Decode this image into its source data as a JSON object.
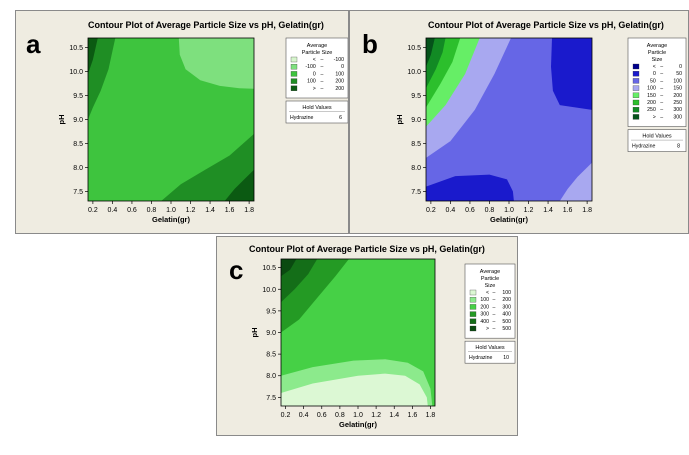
{
  "chart_data": [
    {
      "panel_letter": "a",
      "type": "contour",
      "title": "Contour Plot of Average Particle Size vs pH, Gelatin(gr)",
      "xlabel": "Gelatin(gr)",
      "ylabel": "pH",
      "xlim": [
        0.15,
        1.85
      ],
      "ylim": [
        7.3,
        10.7
      ],
      "xticks": [
        "0.2",
        "0.4",
        "0.6",
        "0.8",
        "1.0",
        "1.2",
        "1.4",
        "1.6",
        "1.8"
      ],
      "yticks": [
        "7.5",
        "8.0",
        "8.5",
        "9.0",
        "9.5",
        "10.0",
        "10.5"
      ],
      "grid": false,
      "legend_position": "right",
      "legend_title": [
        "Average",
        "Particle Size"
      ],
      "levels": [
        {
          "low": "<",
          "high": "-100",
          "color": "#d6f5cc"
        },
        {
          "low": "-100",
          "high": "0",
          "color": "#7ee07e"
        },
        {
          "low": "0",
          "high": "100",
          "color": "#3ec43e"
        },
        {
          "low": "100",
          "high": "200",
          "color": "#1f8e24"
        },
        {
          "low": ">",
          "high": "200",
          "color": "#0b5a12"
        }
      ],
      "hold_values": {
        "title": "Hold Values",
        "name": "Hydrazine",
        "value": "6"
      },
      "regions": [
        {
          "level": 2,
          "pts": [
            [
              0.15,
              7.3
            ],
            [
              1.85,
              7.3
            ],
            [
              1.85,
              10.7
            ],
            [
              0.15,
              10.7
            ]
          ]
        },
        {
          "level": 3,
          "pts": [
            [
              0.15,
              10.7
            ],
            [
              0.15,
              9.0
            ],
            [
              0.2,
              9.25
            ],
            [
              0.28,
              9.6
            ],
            [
              0.36,
              10.05
            ],
            [
              0.43,
              10.7
            ]
          ]
        },
        {
          "level": 4,
          "pts": [
            [
              0.15,
              10.7
            ],
            [
              0.15,
              9.95
            ],
            [
              0.2,
              10.25
            ],
            [
              0.25,
              10.7
            ]
          ]
        },
        {
          "level": 1,
          "pts": [
            [
              1.08,
              10.7
            ],
            [
              1.09,
              10.35
            ],
            [
              1.15,
              10.05
            ],
            [
              1.3,
              9.82
            ],
            [
              1.5,
              9.7
            ],
            [
              1.7,
              9.65
            ],
            [
              1.85,
              9.64
            ],
            [
              1.85,
              10.7
            ]
          ]
        },
        {
          "level": 3,
          "pts": [
            [
              0.9,
              7.3
            ],
            [
              1.1,
              7.65
            ],
            [
              1.35,
              7.95
            ],
            [
              1.6,
              8.25
            ],
            [
              1.85,
              8.7
            ],
            [
              1.85,
              7.3
            ]
          ]
        },
        {
          "level": 4,
          "pts": [
            [
              1.55,
              7.3
            ],
            [
              1.65,
              7.55
            ],
            [
              1.75,
              7.75
            ],
            [
              1.85,
              7.95
            ],
            [
              1.85,
              7.3
            ]
          ]
        }
      ]
    },
    {
      "panel_letter": "b",
      "type": "contour",
      "title": "Contour Plot of Average Particle Size vs pH, Gelatin(gr)",
      "xlabel": "Gelatin(gr)",
      "ylabel": "pH",
      "xlim": [
        0.15,
        1.85
      ],
      "ylim": [
        7.3,
        10.7
      ],
      "xticks": [
        "0.2",
        "0.4",
        "0.6",
        "0.8",
        "1.0",
        "1.2",
        "1.4",
        "1.6",
        "1.8"
      ],
      "yticks": [
        "7.5",
        "8.0",
        "8.5",
        "9.0",
        "9.5",
        "10.0",
        "10.5"
      ],
      "grid": false,
      "legend_position": "right",
      "legend_title": [
        "Average",
        "Particle",
        "Size"
      ],
      "levels": [
        {
          "low": "<",
          "high": "0",
          "color": "#00008b"
        },
        {
          "low": "0",
          "high": "50",
          "color": "#1a1acc"
        },
        {
          "low": "50",
          "high": "100",
          "color": "#6666e6"
        },
        {
          "low": "100",
          "high": "150",
          "color": "#a8a8f0"
        },
        {
          "low": "150",
          "high": "200",
          "color": "#66ee66"
        },
        {
          "low": "200",
          "high": "250",
          "color": "#2cbf2c"
        },
        {
          "low": "250",
          "high": "300",
          "color": "#128a24"
        },
        {
          "low": ">",
          "high": "300",
          "color": "#05521a"
        }
      ],
      "hold_values": {
        "title": "Hold Values",
        "name": "Hydrazine",
        "value": "8"
      },
      "regions": [
        {
          "level": 2,
          "pts": [
            [
              0.15,
              7.3
            ],
            [
              1.85,
              7.3
            ],
            [
              1.85,
              10.7
            ],
            [
              0.15,
              10.7
            ]
          ]
        },
        {
          "level": 3,
          "pts": [
            [
              0.15,
              10.7
            ],
            [
              0.15,
              8.2
            ],
            [
              0.4,
              8.55
            ],
            [
              0.65,
              9.2
            ],
            [
              0.85,
              9.95
            ],
            [
              1.02,
              10.7
            ]
          ]
        },
        {
          "level": 4,
          "pts": [
            [
              0.15,
              10.7
            ],
            [
              0.15,
              8.85
            ],
            [
              0.35,
              9.3
            ],
            [
              0.55,
              9.95
            ],
            [
              0.7,
              10.7
            ]
          ]
        },
        {
          "level": 5,
          "pts": [
            [
              0.15,
              10.7
            ],
            [
              0.15,
              9.25
            ],
            [
              0.3,
              9.75
            ],
            [
              0.42,
              10.2
            ],
            [
              0.5,
              10.7
            ]
          ]
        },
        {
          "level": 6,
          "pts": [
            [
              0.15,
              10.7
            ],
            [
              0.15,
              9.65
            ],
            [
              0.25,
              10.05
            ],
            [
              0.32,
              10.4
            ],
            [
              0.35,
              10.7
            ]
          ]
        },
        {
          "level": 7,
          "pts": [
            [
              0.15,
              10.7
            ],
            [
              0.15,
              10.1
            ],
            [
              0.2,
              10.35
            ],
            [
              0.24,
              10.7
            ]
          ]
        },
        {
          "level": 1,
          "pts": [
            [
              0.15,
              7.3
            ],
            [
              0.15,
              7.6
            ],
            [
              0.45,
              7.82
            ],
            [
              0.8,
              7.85
            ],
            [
              0.98,
              7.75
            ],
            [
              1.04,
              7.5
            ],
            [
              1.05,
              7.3
            ]
          ]
        },
        {
          "level": 1,
          "pts": [
            [
              1.44,
              10.7
            ],
            [
              1.43,
              10.1
            ],
            [
              1.45,
              9.6
            ],
            [
              1.52,
              9.3
            ],
            [
              1.85,
              9.2
            ],
            [
              1.85,
              10.7
            ]
          ]
        },
        {
          "level": 3,
          "pts": [
            [
              1.52,
              7.3
            ],
            [
              1.6,
              7.55
            ],
            [
              1.7,
              7.8
            ],
            [
              1.85,
              8.1
            ],
            [
              1.85,
              7.3
            ]
          ]
        }
      ]
    },
    {
      "panel_letter": "c",
      "type": "contour",
      "title": "Contour Plot of Average Particle Size vs pH, Gelatin(gr)",
      "xlabel": "Gelatin(gr)",
      "ylabel": "pH",
      "xlim": [
        0.15,
        1.85
      ],
      "ylim": [
        7.3,
        10.7
      ],
      "xticks": [
        "0.2",
        "0.4",
        "0.6",
        "0.8",
        "1.0",
        "1.2",
        "1.4",
        "1.6",
        "1.8"
      ],
      "yticks": [
        "7.5",
        "8.0",
        "8.5",
        "9.0",
        "9.5",
        "10.0",
        "10.5"
      ],
      "grid": false,
      "legend_position": "right",
      "legend_title": [
        "Average",
        "Particle",
        "Size"
      ],
      "levels": [
        {
          "low": "<",
          "high": "100",
          "color": "#dcf8d4"
        },
        {
          "low": "100",
          "high": "200",
          "color": "#8cea8c"
        },
        {
          "low": "200",
          "high": "300",
          "color": "#46d046"
        },
        {
          "low": "300",
          "high": "400",
          "color": "#249a24"
        },
        {
          "low": "400",
          "high": "500",
          "color": "#146e18"
        },
        {
          "low": ">",
          "high": "500",
          "color": "#0a4a10"
        }
      ],
      "hold_values": {
        "title": "Hold Values",
        "name": "Hydrazine",
        "value": "10"
      },
      "regions": [
        {
          "level": 2,
          "pts": [
            [
              0.15,
              7.3
            ],
            [
              1.85,
              7.3
            ],
            [
              1.85,
              10.7
            ],
            [
              0.15,
              10.7
            ]
          ]
        },
        {
          "level": 1,
          "pts": [
            [
              0.15,
              7.3
            ],
            [
              0.15,
              8.0
            ],
            [
              0.5,
              8.2
            ],
            [
              0.95,
              8.35
            ],
            [
              1.3,
              8.38
            ],
            [
              1.55,
              8.3
            ],
            [
              1.72,
              8.1
            ],
            [
              1.8,
              7.7
            ],
            [
              1.82,
              7.3
            ]
          ]
        },
        {
          "level": 0,
          "pts": [
            [
              0.15,
              7.3
            ],
            [
              0.15,
              7.6
            ],
            [
              0.5,
              7.82
            ],
            [
              1.0,
              8.0
            ],
            [
              1.3,
              8.05
            ],
            [
              1.52,
              8.0
            ],
            [
              1.68,
              7.8
            ],
            [
              1.76,
              7.5
            ],
            [
              1.77,
              7.3
            ]
          ]
        },
        {
          "level": 3,
          "pts": [
            [
              0.15,
              10.7
            ],
            [
              0.15,
              9.0
            ],
            [
              0.35,
              9.3
            ],
            [
              0.55,
              9.8
            ],
            [
              0.75,
              10.3
            ],
            [
              0.9,
              10.7
            ]
          ]
        },
        {
          "level": 4,
          "pts": [
            [
              0.15,
              10.7
            ],
            [
              0.15,
              9.7
            ],
            [
              0.3,
              10.0
            ],
            [
              0.45,
              10.35
            ],
            [
              0.55,
              10.7
            ]
          ]
        },
        {
          "level": 5,
          "pts": [
            [
              0.15,
              10.7
            ],
            [
              0.15,
              10.3
            ],
            [
              0.25,
              10.45
            ],
            [
              0.32,
              10.7
            ]
          ]
        }
      ]
    }
  ]
}
